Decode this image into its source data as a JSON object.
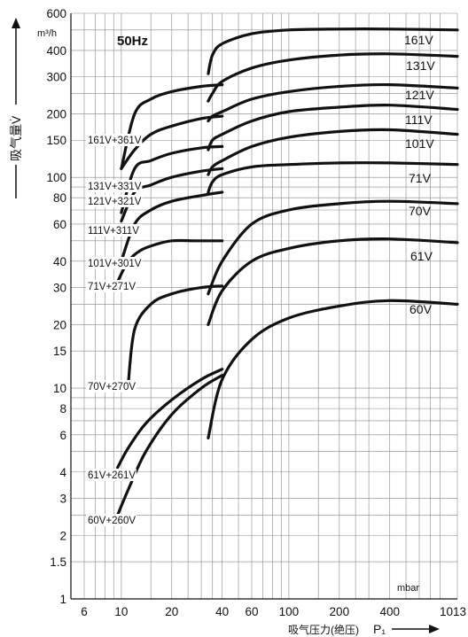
{
  "chart_data": {
    "type": "line",
    "title": "",
    "frequency_label": "50Hz",
    "ylabel": "吸气量V̇",
    "yunit": "m³/h",
    "xlabel": "吸气压力(绝压)",
    "xlabel_symbol": "P₁",
    "xunit": "mbar",
    "xscale": "log",
    "yscale": "log",
    "xlim": [
      5,
      1013
    ],
    "ylim": [
      1,
      600
    ],
    "grid": true,
    "legend": "labels on curves",
    "xticks": [
      {
        "value": 6,
        "label": "6"
      },
      {
        "value": 10,
        "label": "10"
      },
      {
        "value": 20,
        "label": "20"
      },
      {
        "value": 40,
        "label": "40"
      },
      {
        "value": 60,
        "label": "60"
      },
      {
        "value": 100,
        "label": "100"
      },
      {
        "value": 200,
        "label": "200"
      },
      {
        "value": 400,
        "label": "400"
      },
      {
        "value": 1013,
        "label": "1013"
      }
    ],
    "yticks": [
      {
        "value": 1,
        "label": "1"
      },
      {
        "value": 1.5,
        "label": "1.5"
      },
      {
        "value": 2,
        "label": "2"
      },
      {
        "value": 3,
        "label": "3"
      },
      {
        "value": 4,
        "label": "4"
      },
      {
        "value": 6,
        "label": "6"
      },
      {
        "value": 8,
        "label": "8"
      },
      {
        "value": 10,
        "label": "10"
      },
      {
        "value": 15,
        "label": "15"
      },
      {
        "value": 20,
        "label": "20"
      },
      {
        "value": 30,
        "label": "30"
      },
      {
        "value": 40,
        "label": "40"
      },
      {
        "value": 60,
        "label": "60"
      },
      {
        "value": 80,
        "label": "80"
      },
      {
        "value": 100,
        "label": "100"
      },
      {
        "value": 150,
        "label": "150"
      },
      {
        "value": 200,
        "label": "200"
      },
      {
        "value": 300,
        "label": "300"
      },
      {
        "value": 400,
        "label": "400"
      },
      {
        "value": 600,
        "label": "600"
      }
    ],
    "series": [
      {
        "name": "161V",
        "x": [
          33,
          35,
          40,
          60,
          100,
          200,
          400,
          1013
        ],
        "y": [
          310,
          380,
          430,
          480,
          500,
          505,
          505,
          500
        ]
      },
      {
        "name": "131V",
        "x": [
          33,
          35,
          40,
          60,
          100,
          200,
          400,
          1013
        ],
        "y": [
          230,
          250,
          285,
          330,
          360,
          380,
          385,
          375
        ]
      },
      {
        "name": "121V",
        "x": [
          33,
          35,
          40,
          60,
          100,
          200,
          400,
          1013
        ],
        "y": [
          185,
          195,
          205,
          235,
          255,
          270,
          275,
          265
        ]
      },
      {
        "name": "111V",
        "x": [
          33,
          35,
          40,
          60,
          100,
          200,
          400,
          1013
        ],
        "y": [
          135,
          150,
          160,
          185,
          205,
          215,
          220,
          210
        ]
      },
      {
        "name": "101V",
        "x": [
          33,
          35,
          40,
          60,
          100,
          200,
          400,
          1013
        ],
        "y": [
          103,
          112,
          120,
          140,
          155,
          165,
          168,
          160
        ]
      },
      {
        "name": "71V",
        "x": [
          33,
          35,
          40,
          60,
          100,
          200,
          400,
          1013
        ],
        "y": [
          85,
          95,
          103,
          112,
          115,
          117,
          117,
          115
        ]
      },
      {
        "name": "70V",
        "x": [
          33,
          40,
          60,
          100,
          200,
          400,
          1013
        ],
        "y": [
          28,
          40,
          60,
          70,
          75,
          77,
          75
        ]
      },
      {
        "name": "61V",
        "x": [
          33,
          40,
          60,
          100,
          200,
          400,
          1013
        ],
        "y": [
          20,
          29,
          40,
          46,
          50,
          51,
          49
        ]
      },
      {
        "name": "60V",
        "x": [
          33,
          40,
          60,
          100,
          200,
          400,
          1013
        ],
        "y": [
          5.8,
          11,
          17,
          21.5,
          24.5,
          26,
          25
        ]
      },
      {
        "name": "161V+361V",
        "x": [
          10,
          12,
          15,
          20,
          30,
          40
        ],
        "y": [
          110,
          200,
          235,
          255,
          270,
          275
        ]
      },
      {
        "name": "131V+331V",
        "x": [
          10,
          12,
          15,
          20,
          30,
          40
        ],
        "y": [
          110,
          135,
          160,
          175,
          190,
          195
        ]
      },
      {
        "name": "121V+321V",
        "x": [
          10,
          12,
          15,
          20,
          30,
          40
        ],
        "y": [
          68,
          110,
          120,
          130,
          138,
          140
        ]
      },
      {
        "name": "111V+311V",
        "x": [
          10,
          12,
          15,
          20,
          30,
          40
        ],
        "y": [
          62,
          85,
          92,
          100,
          107,
          110
        ]
      },
      {
        "name": "101V+301V",
        "x": [
          10,
          12,
          15,
          20,
          30,
          40
        ],
        "y": [
          40,
          60,
          70,
          77,
          82,
          85
        ]
      },
      {
        "name": "71V+271V",
        "x": [
          9.5,
          11,
          13,
          16,
          20,
          28,
          40
        ],
        "y": [
          32,
          40,
          45,
          48,
          50,
          50,
          50
        ]
      },
      {
        "name": "70V+270V",
        "x": [
          11,
          12,
          15,
          20,
          30,
          40
        ],
        "y": [
          10.5,
          19,
          25,
          28,
          30,
          30.5
        ]
      },
      {
        "name": "61V+261V",
        "x": [
          9.5,
          11,
          14,
          20,
          30,
          40
        ],
        "y": [
          4.2,
          5.2,
          6.8,
          8.8,
          11,
          12.3
        ]
      },
      {
        "name": "60V+260V",
        "x": [
          9.5,
          11,
          14,
          20,
          30,
          40
        ],
        "y": [
          2.5,
          3.3,
          5,
          7.5,
          10,
          11.5
        ]
      }
    ],
    "label_text": {
      "right": [
        "161V",
        "131V",
        "121V",
        "111V",
        "101V",
        "71V",
        "70V",
        "61V",
        "60V"
      ],
      "left": [
        "161V+361V",
        "131V+331V",
        "121V+321V",
        "111V+311V",
        "101V+301V",
        "71V+271V",
        "70V+270V",
        "61V+261V",
        "60V+260V"
      ]
    }
  }
}
